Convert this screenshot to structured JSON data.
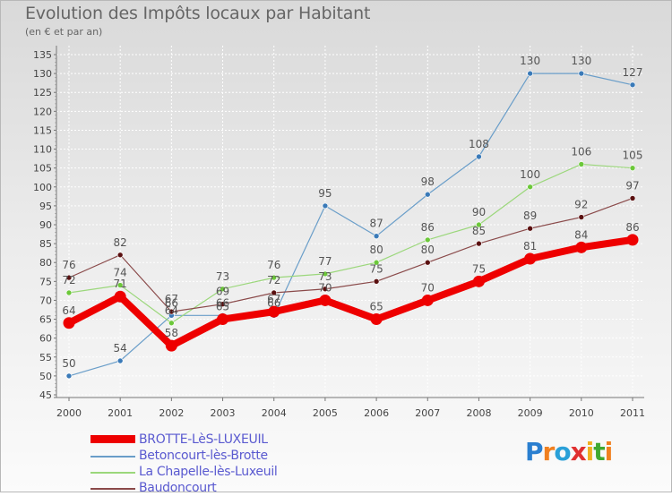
{
  "title": "Evolution des Impôts locaux par Habitant",
  "subtitle": "(en € et par an)",
  "logo": {
    "text": "Proxiti",
    "letters": [
      "P",
      "r",
      "o",
      "x",
      "i",
      "t",
      "i"
    ],
    "colors": [
      "#2a7fd0",
      "#f08020",
      "#2aa0d8",
      "#e03030",
      "#f0b020",
      "#40a830",
      "#f08020"
    ]
  },
  "chart_data": {
    "type": "line",
    "title": "Evolution des Impôts locaux par Habitant",
    "subtitle": "(en € et par an)",
    "xlabel": "",
    "ylabel": "",
    "ylim": [
      45,
      135
    ],
    "yticks": [
      45,
      50,
      55,
      60,
      65,
      70,
      75,
      80,
      85,
      90,
      95,
      100,
      105,
      110,
      115,
      120,
      125,
      130,
      135
    ],
    "categories": [
      "2000",
      "2001",
      "2002",
      "2003",
      "2004",
      "2005",
      "2006",
      "2007",
      "2008",
      "2009",
      "2010",
      "2011"
    ],
    "series": [
      {
        "name": "Betoncourt-lès-Brotte",
        "color": "#6a9ec9",
        "marker": "#3a7ab8",
        "width": 1.2,
        "values": [
          50,
          54,
          66,
          66,
          66,
          95,
          87,
          98,
          108,
          130,
          130,
          127
        ],
        "labels": [
          "50",
          "54",
          "66",
          "66",
          "66",
          "95",
          "87",
          "98",
          "108",
          "130",
          "130",
          "127"
        ]
      },
      {
        "name": "La Chapelle-lès-Luxeuil",
        "color": "#9bd77b",
        "marker": "#6cc83a",
        "width": 1.2,
        "values": [
          72,
          74,
          64,
          73,
          76,
          77,
          80,
          86,
          90,
          100,
          106,
          105
        ],
        "labels": [
          "72",
          "74",
          "64",
          "73",
          "76",
          "77",
          "80",
          "86",
          "90",
          "100",
          "106",
          "105"
        ]
      },
      {
        "name": "Baudoncourt",
        "color": "#8a4a4a",
        "marker": "#5a1010",
        "width": 1.2,
        "values": [
          76,
          82,
          67,
          69,
          72,
          73,
          75,
          80,
          85,
          89,
          92,
          97
        ],
        "labels": [
          "76",
          "82",
          "67",
          "69",
          "72",
          "73",
          "75",
          "80",
          "85",
          "89",
          "92",
          "97"
        ]
      },
      {
        "name": "BROTTE-LèS-LUXEUIL",
        "color": "#ee0000",
        "marker": "#ee0000",
        "width": 8,
        "values": [
          64,
          71,
          58,
          65,
          67,
          70,
          65,
          70,
          75,
          81,
          84,
          86
        ],
        "labels": [
          "64",
          "71",
          "58",
          "65",
          "67",
          "70",
          "65",
          "70",
          "75",
          "81",
          "84",
          "86"
        ]
      }
    ],
    "legend": [
      {
        "name": "BROTTE-LèS-LUXEUIL",
        "color": "#ee0000"
      },
      {
        "name": "Betoncourt-lès-Brotte",
        "color": "#6a9ec9"
      },
      {
        "name": "La Chapelle-lès-Luxeuil",
        "color": "#9bd77b"
      },
      {
        "name": "Baudoncourt",
        "color": "#8a4a4a"
      }
    ]
  }
}
